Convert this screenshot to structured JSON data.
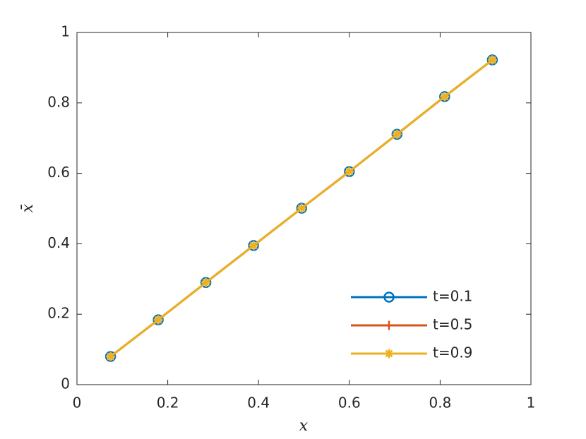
{
  "chart_data": {
    "type": "line",
    "x": [
      0.074,
      0.179,
      0.284,
      0.389,
      0.495,
      0.6,
      0.705,
      0.81,
      0.915
    ],
    "series": [
      {
        "name": "t=0.1",
        "color": "#0072BD",
        "marker": "o",
        "values": [
          0.08,
          0.184,
          0.29,
          0.395,
          0.501,
          0.605,
          0.711,
          0.818,
          0.922
        ]
      },
      {
        "name": "t=0.5",
        "color": "#D95319",
        "marker": "+",
        "values": [
          0.08,
          0.184,
          0.29,
          0.395,
          0.501,
          0.605,
          0.711,
          0.818,
          0.922
        ]
      },
      {
        "name": "t=0.9",
        "color": "#EDB120",
        "marker": "*",
        "values": [
          0.08,
          0.184,
          0.29,
          0.395,
          0.501,
          0.605,
          0.711,
          0.818,
          0.922
        ]
      }
    ],
    "x_label": "x",
    "y_label": "x̄",
    "xlim": [
      0,
      1
    ],
    "ylim": [
      0,
      1
    ],
    "xticks": [
      0,
      0.2,
      0.4,
      0.6,
      0.8,
      1
    ],
    "yticks": [
      0,
      0.2,
      0.4,
      0.6,
      0.8,
      1
    ],
    "grid": false,
    "legend": "lower right"
  }
}
